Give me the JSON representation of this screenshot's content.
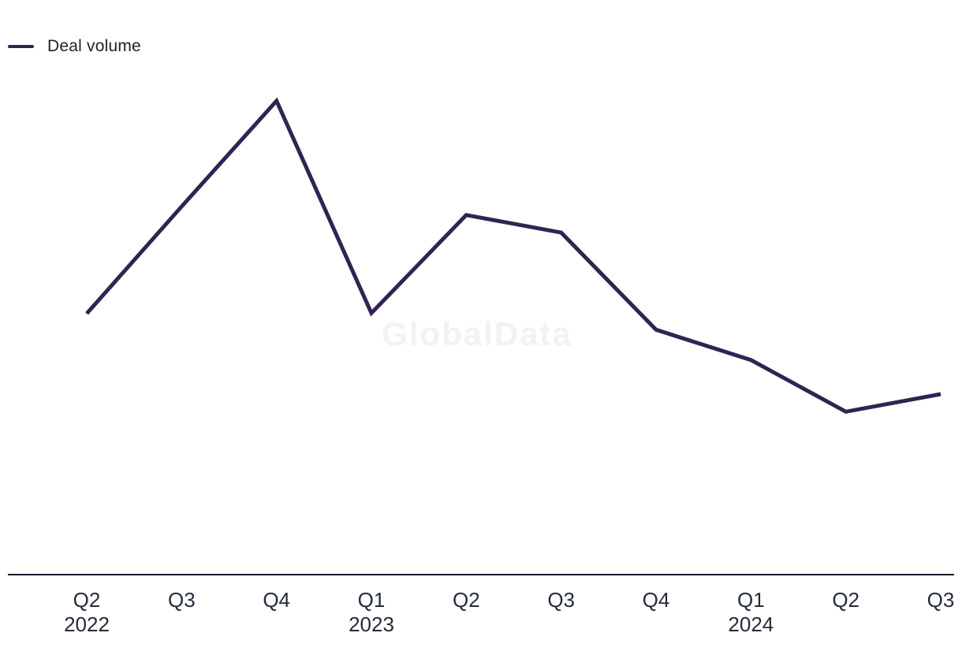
{
  "legend": {
    "label": "Deal volume",
    "color": "#322353"
  },
  "watermark": {
    "text": "GlobalData"
  },
  "chart_data": {
    "type": "line",
    "title": "",
    "xlabel": "",
    "ylabel": "",
    "y_axis_visible": false,
    "grid": false,
    "legend_position": "top-left",
    "line_color": "#322353",
    "axis_color": "#151b2b",
    "values_unit": "relative index (no y-axis labels shown; peak = 100)",
    "ylim": [
      0,
      106
    ],
    "categories": [
      {
        "quarter": "Q2",
        "year": "2022"
      },
      {
        "quarter": "Q3",
        "year": ""
      },
      {
        "quarter": "Q4",
        "year": ""
      },
      {
        "quarter": "Q1",
        "year": "2023"
      },
      {
        "quarter": "Q2",
        "year": ""
      },
      {
        "quarter": "Q3",
        "year": ""
      },
      {
        "quarter": "Q4",
        "year": ""
      },
      {
        "quarter": "Q1",
        "year": "2024"
      },
      {
        "quarter": "Q2",
        "year": ""
      },
      {
        "quarter": "Q3",
        "year": ""
      }
    ],
    "series": [
      {
        "name": "Deal volume",
        "values": [
          55.1,
          77.7,
          100,
          55.2,
          75.9,
          72.2,
          51.7,
          45.3,
          34.4,
          38.1
        ]
      }
    ]
  }
}
